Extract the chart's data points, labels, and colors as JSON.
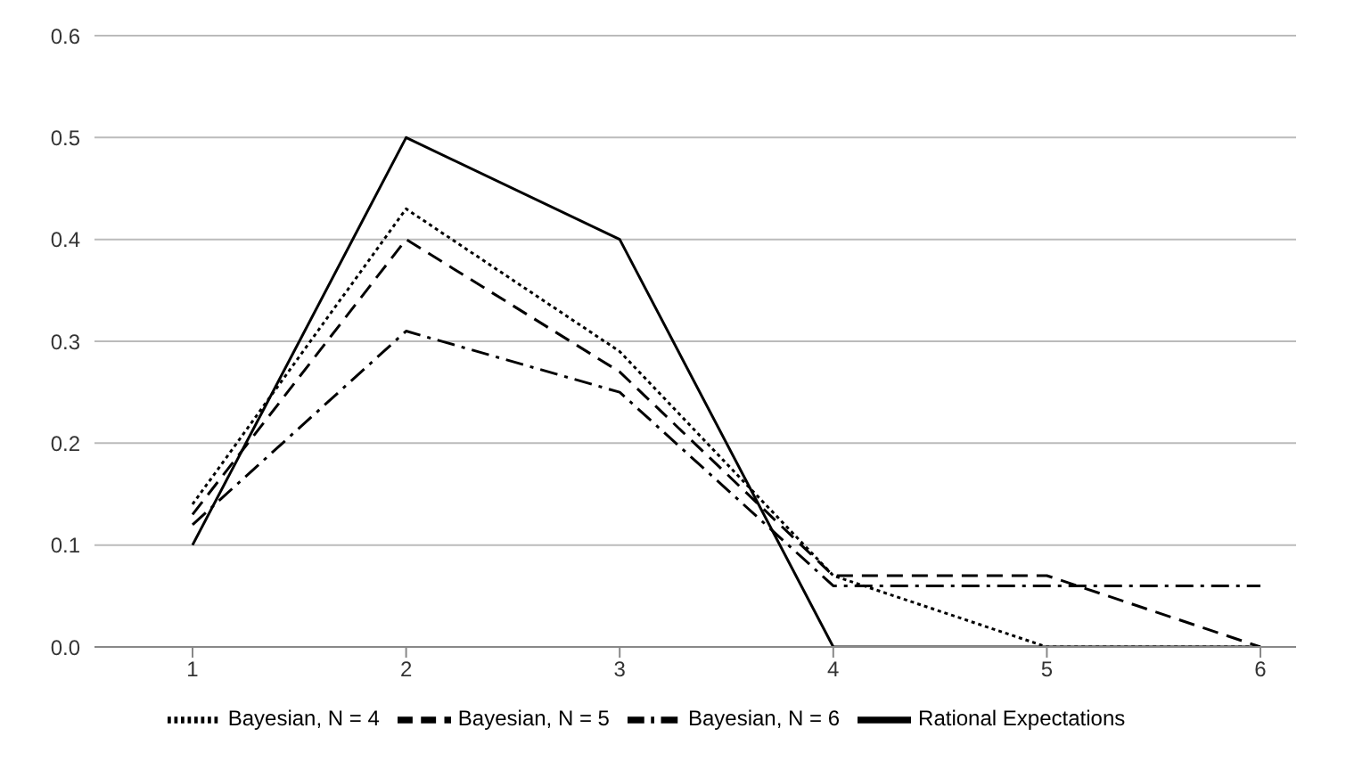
{
  "chart_data": {
    "type": "line",
    "categories": [
      "1",
      "2",
      "3",
      "4",
      "5",
      "6"
    ],
    "series": [
      {
        "name": "Rational Expectations",
        "color": "#000000",
        "line_style": "solid",
        "values": [
          0.1,
          0.5,
          0.4,
          0,
          0,
          0
        ]
      },
      {
        "name": "Bayesian, N = 4",
        "color": "#000000",
        "line_style": "dotted",
        "values": [
          0.14,
          0.43,
          0.29,
          0.07,
          0,
          0
        ]
      },
      {
        "name": "Bayesian, N = 5",
        "color": "#000000",
        "line_style": "dashed",
        "values": [
          0.13,
          0.4,
          0.27,
          0.07,
          0.07,
          0
        ]
      },
      {
        "name": "Bayesian, N = 6",
        "color": "#000000",
        "line_style": "dashdot",
        "values": [
          0.12,
          0.31,
          0.25,
          0.06,
          0.06,
          0.06
        ]
      }
    ],
    "ylim": [
      0,
      0.6
    ],
    "yticks": [
      {
        "value": 0,
        "label": "0.0"
      },
      {
        "value": 0.1,
        "label": "0.1"
      },
      {
        "value": 0.2,
        "label": "0.2"
      },
      {
        "value": 0.3,
        "label": "0.3"
      },
      {
        "value": 0.4,
        "label": "0.4"
      },
      {
        "value": 0.5,
        "label": "0.5"
      },
      {
        "value": 0.6,
        "label": "0.6"
      }
    ],
    "grid": "y",
    "legend": "bottom",
    "marker": "none"
  }
}
